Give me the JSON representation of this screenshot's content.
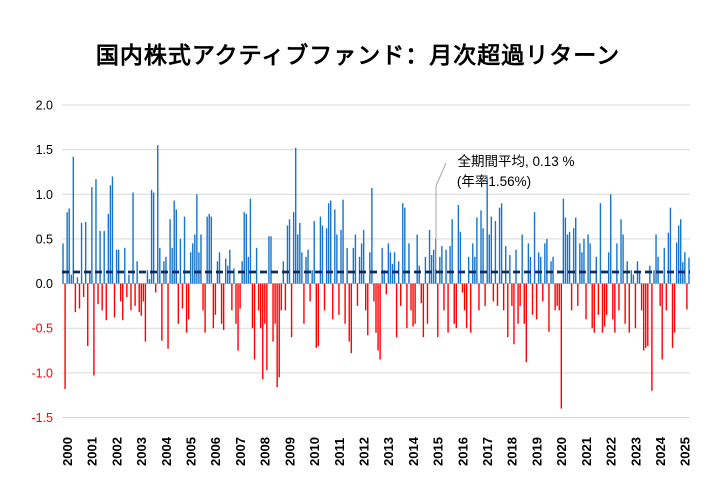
{
  "title": "国内株式アクティブファンド：月次超過リターン",
  "annotation": {
    "line1": "全期間平均, 0.13 %",
    "line2": "(年率1.56%)"
  },
  "colors": {
    "bar_positive": "#1674CC",
    "bar_negative": "#FF0000",
    "average_line": "#0E2A5E",
    "gridline": "#D9D9D9",
    "axis_line": "#C9C9C9",
    "tick_label": "#000000",
    "tick_label_negative": "#FF0000",
    "leader_line": "#A6A6A6",
    "title_color": "#000000",
    "background": "#FFFFFF"
  },
  "chart_data": {
    "type": "bar",
    "title": "国内株式アクティブファンド：月次超過リターン",
    "xlabel": "",
    "ylabel": "",
    "unit": "%",
    "x_start": "2000-01",
    "x_end": "2025-05",
    "x_tick_labels": [
      "2000",
      "2001",
      "2002",
      "2003",
      "2004",
      "2005",
      "2006",
      "2007",
      "2008",
      "2009",
      "2010",
      "2011",
      "2012",
      "2013",
      "2014",
      "2015",
      "2016",
      "2017",
      "2018",
      "2019",
      "2020",
      "2021",
      "2022",
      "2023",
      "2024",
      "2025"
    ],
    "y_tick_labels": [
      "2.0",
      "1.5",
      "1.0",
      "0.5",
      "0.0",
      "-0.5",
      "-1.0",
      "-1.5"
    ],
    "ylim": [
      -1.5,
      2.0
    ],
    "grid": true,
    "legend": "none",
    "average_pct": 0.13,
    "annualized_pct": 1.56,
    "values": [
      0.45,
      -1.18,
      0.8,
      0.84,
      0.1,
      1.42,
      -0.32,
      0.07,
      -0.28,
      0.68,
      -0.15,
      0.69,
      -0.7,
      0.14,
      1.08,
      -1.03,
      1.17,
      -0.23,
      0.59,
      -0.3,
      0.59,
      -0.41,
      0.78,
      1.1,
      1.2,
      -0.38,
      0.38,
      0.38,
      -0.2,
      -0.41,
      0.4,
      -0.15,
      0.1,
      -0.3,
      1.02,
      -0.25,
      0.25,
      -0.32,
      -0.36,
      -0.2,
      -0.65,
      0.15,
      0.05,
      1.05,
      1.02,
      -0.1,
      1.55,
      0.4,
      -0.64,
      0.25,
      0.3,
      -0.73,
      0.72,
      0.4,
      0.93,
      0.83,
      -0.45,
      0.5,
      -0.28,
      0.75,
      -0.55,
      -0.4,
      0.35,
      0.45,
      0.55,
      1.0,
      0.35,
      0.55,
      -0.3,
      -0.55,
      0.75,
      0.78,
      0.75,
      -0.5,
      -0.35,
      0.25,
      0.35,
      -0.45,
      -0.52,
      0.28,
      0.2,
      0.38,
      -0.3,
      0.17,
      -0.45,
      -0.75,
      -0.28,
      0.25,
      0.8,
      0.78,
      0.3,
      0.95,
      -0.5,
      -0.85,
      0.4,
      -0.3,
      -0.5,
      -1.07,
      -0.45,
      -0.97,
      0.53,
      0.53,
      -0.65,
      -0.45,
      -1.16,
      -1.05,
      -0.3,
      0.25,
      -0.3,
      0.65,
      0.72,
      -0.6,
      0.8,
      1.52,
      0.55,
      0.68,
      0.35,
      -0.45,
      0.3,
      0.38,
      -0.2,
      0.15,
      0.7,
      -0.72,
      -0.7,
      0.75,
      0.65,
      -0.3,
      0.62,
      0.9,
      0.93,
      -0.4,
      0.83,
      0.55,
      -0.35,
      0.6,
      0.94,
      -0.45,
      0.4,
      -0.65,
      -0.78,
      0.4,
      0.55,
      -0.25,
      0.3,
      0.45,
      0.6,
      -0.3,
      -0.58,
      0.35,
      1.07,
      -0.2,
      -0.55,
      -0.75,
      -0.85,
      0.4,
      0.15,
      -0.12,
      0.45,
      0.35,
      0.22,
      0.35,
      -0.6,
      0.25,
      -0.25,
      0.9,
      0.85,
      -0.5,
      0.45,
      -0.3,
      -0.48,
      -0.45,
      0.55,
      0.2,
      -0.22,
      -0.6,
      0.3,
      -0.45,
      0.6,
      0.32,
      0.38,
      0.5,
      -0.6,
      0.3,
      0.42,
      -0.3,
      0.38,
      -0.55,
      0.42,
      0.72,
      -0.45,
      -0.5,
      0.88,
      0.58,
      -0.1,
      -0.3,
      -0.5,
      0.3,
      -0.55,
      0.45,
      0.3,
      0.74,
      -0.3,
      0.82,
      0.62,
      -0.25,
      1.19,
      0.55,
      0.75,
      -0.2,
      0.7,
      -0.25,
      0.85,
      0.9,
      -0.3,
      0.42,
      -0.6,
      0.32,
      -0.25,
      -0.68,
      0.38,
      -0.45,
      -0.25,
      0.55,
      -0.45,
      -0.88,
      0.45,
      0.3,
      -0.35,
      0.8,
      -0.4,
      0.35,
      0.3,
      -0.2,
      0.45,
      0.5,
      -0.54,
      0.25,
      0.3,
      -0.3,
      -0.25,
      -0.3,
      -1.4,
      0.95,
      0.74,
      0.55,
      0.58,
      -0.3,
      0.62,
      0.74,
      -0.25,
      0.45,
      0.35,
      0.5,
      -0.4,
      0.55,
      0.45,
      -0.5,
      -0.55,
      0.3,
      -0.35,
      0.9,
      -0.55,
      -0.48,
      -0.35,
      0.35,
      1.0,
      -0.4,
      -0.55,
      0.45,
      -0.3,
      0.72,
      0.55,
      -0.45,
      0.25,
      -0.55,
      0.15,
      0.1,
      -0.5,
      0.25,
      0.12,
      -0.3,
      -0.75,
      -0.72,
      -0.7,
      0.2,
      -1.2,
      0.15,
      0.55,
      0.3,
      -0.25,
      -0.85,
      0.4,
      -0.3,
      0.57,
      0.85,
      -0.72,
      -0.55,
      0.46,
      0.65,
      0.72,
      0.24,
      0.35,
      -0.29,
      0.29
    ]
  }
}
